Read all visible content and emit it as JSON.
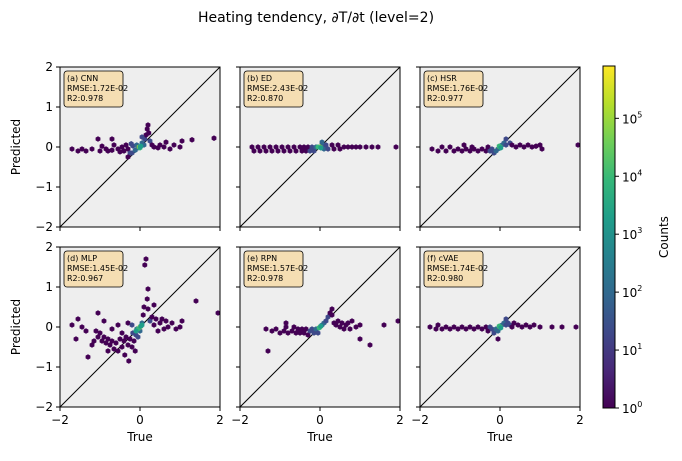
{
  "title": "Heating tendency, ∂T/∂t (level=2)",
  "colors": {
    "panel_bg": "#eeeeee",
    "box_fill": "#f5deb3",
    "diagonal": "#000000",
    "viridis": [
      "#440154",
      "#482878",
      "#3e4989",
      "#31688e",
      "#26828e",
      "#1f9e89",
      "#35b779",
      "#6ece58",
      "#b5de2b",
      "#fde725"
    ]
  },
  "colorbar": {
    "label": "Counts",
    "scale": "log",
    "range": [
      1,
      800000
    ],
    "ticks": [
      {
        "value": 1,
        "base": "10",
        "exp": "0"
      },
      {
        "value": 10,
        "base": "10",
        "exp": "1"
      },
      {
        "value": 100,
        "base": "10",
        "exp": "2"
      },
      {
        "value": 1000,
        "base": "10",
        "exp": "3"
      },
      {
        "value": 10000,
        "base": "10",
        "exp": "4"
      },
      {
        "value": 100000,
        "base": "10",
        "exp": "5"
      }
    ]
  },
  "chart_data": [
    {
      "type": "scatter",
      "subtype": "hexbin",
      "panel": "(a) CNN",
      "metrics": [
        "RMSE:1.72E-02",
        "R2:0.978"
      ],
      "xlabel": "",
      "ylabel": "Predicted",
      "xlim": [
        -2,
        2
      ],
      "ylim": [
        -2,
        2
      ],
      "xticks": [
        "−2",
        "0",
        "2"
      ],
      "yticks": [
        "−2",
        "−1",
        "0",
        "1",
        "2"
      ],
      "points": [
        [
          -1.7,
          -0.05
        ],
        [
          -1.55,
          -0.1
        ],
        [
          -1.45,
          -0.05
        ],
        [
          -1.35,
          -0.1
        ],
        [
          -1.2,
          -0.05
        ],
        [
          -1.0,
          -0.1
        ],
        [
          -0.95,
          0.02
        ],
        [
          -0.85,
          -0.05
        ],
        [
          -0.8,
          -0.1
        ],
        [
          -0.7,
          -0.08
        ],
        [
          -0.65,
          0.05
        ],
        [
          -0.55,
          -0.05
        ],
        [
          -0.5,
          -0.12
        ],
        [
          -0.45,
          0.0
        ],
        [
          -0.4,
          -0.1
        ],
        [
          -0.35,
          0.05
        ],
        [
          -0.3,
          -0.05
        ],
        [
          -0.25,
          -0.15
        ],
        [
          -0.22,
          0.08
        ],
        [
          -0.3,
          -0.25
        ],
        [
          -0.2,
          -0.15
        ],
        [
          -0.18,
          0.03
        ],
        [
          -0.12,
          -0.08
        ],
        [
          -0.08,
          0.05
        ],
        [
          -0.05,
          -0.02
        ],
        [
          0.0,
          0.0
        ],
        [
          0.05,
          0.1
        ],
        [
          0.1,
          0.05
        ],
        [
          0.12,
          0.2
        ],
        [
          0.15,
          0.3
        ],
        [
          0.18,
          0.45
        ],
        [
          0.2,
          0.55
        ],
        [
          0.22,
          0.35
        ],
        [
          0.25,
          0.15
        ],
        [
          0.3,
          0.05
        ],
        [
          0.35,
          0.0
        ],
        [
          0.45,
          -0.02
        ],
        [
          0.5,
          0.05
        ],
        [
          0.6,
          0.0
        ],
        [
          0.65,
          0.12
        ],
        [
          0.75,
          -0.05
        ],
        [
          0.85,
          0.05
        ],
        [
          1.0,
          0.0
        ],
        [
          1.05,
          0.15
        ],
        [
          1.3,
          0.18
        ],
        [
          1.85,
          0.22
        ],
        [
          -1.05,
          0.2
        ],
        [
          -0.7,
          0.2
        ],
        [
          0.05,
          0.25
        ]
      ],
      "dense": [
        [
          -0.02,
          0.0
        ],
        [
          0.0,
          -0.02
        ],
        [
          0.02,
          0.02
        ],
        [
          0.0,
          0.0
        ]
      ]
    },
    {
      "type": "scatter",
      "subtype": "hexbin",
      "panel": "(b) ED",
      "metrics": [
        "RMSE:2.43E-02",
        "R2:0.870"
      ],
      "xlabel": "",
      "ylabel": "",
      "xlim": [
        -2,
        2
      ],
      "ylim": [
        -2,
        2
      ],
      "xticks": [
        "−2",
        "0",
        "2"
      ],
      "yticks": [
        "−2",
        "−1",
        "0",
        "1",
        "2"
      ],
      "points": [
        [
          -1.7,
          0.0
        ],
        [
          -1.65,
          -0.1
        ],
        [
          -1.55,
          0.0
        ],
        [
          -1.5,
          -0.1
        ],
        [
          -1.4,
          0.0
        ],
        [
          -1.35,
          -0.1
        ],
        [
          -1.25,
          0.0
        ],
        [
          -1.2,
          -0.1
        ],
        [
          -1.1,
          0.0
        ],
        [
          -1.05,
          -0.1
        ],
        [
          -0.95,
          0.0
        ],
        [
          -0.9,
          -0.1
        ],
        [
          -0.8,
          0.0
        ],
        [
          -0.75,
          -0.1
        ],
        [
          -0.65,
          0.0
        ],
        [
          -0.6,
          -0.1
        ],
        [
          -0.5,
          0.0
        ],
        [
          -0.45,
          -0.1
        ],
        [
          -0.4,
          0.0
        ],
        [
          -0.35,
          -0.1
        ],
        [
          -0.3,
          0.0
        ],
        [
          -0.25,
          -0.1
        ],
        [
          -0.2,
          0.0
        ],
        [
          -0.15,
          -0.1
        ],
        [
          -0.1,
          0.0
        ],
        [
          0.05,
          0.05
        ],
        [
          0.1,
          -0.05
        ],
        [
          0.15,
          0.05
        ],
        [
          0.2,
          -0.05
        ],
        [
          0.3,
          0.05
        ],
        [
          0.35,
          -0.05
        ],
        [
          0.45,
          0.05
        ],
        [
          0.5,
          -0.05
        ],
        [
          0.6,
          0.0
        ],
        [
          0.7,
          0.0
        ],
        [
          0.8,
          0.0
        ],
        [
          0.9,
          0.0
        ],
        [
          1.0,
          0.0
        ],
        [
          1.15,
          0.0
        ],
        [
          1.3,
          0.0
        ],
        [
          1.45,
          0.0
        ],
        [
          1.9,
          0.0
        ],
        [
          0.05,
          0.12
        ]
      ],
      "dense": [
        [
          0.0,
          0.0
        ],
        [
          -0.05,
          0.0
        ],
        [
          0.02,
          -0.02
        ]
      ]
    },
    {
      "type": "scatter",
      "subtype": "hexbin",
      "panel": "(c) HSR",
      "metrics": [
        "RMSE:1.76E-02",
        "R2:0.977"
      ],
      "xlabel": "",
      "ylabel": "",
      "xlim": [
        -2,
        2
      ],
      "ylim": [
        -2,
        2
      ],
      "xticks": [
        "−2",
        "0",
        "2"
      ],
      "yticks": [
        "−2",
        "−1",
        "0",
        "1",
        "2"
      ],
      "points": [
        [
          -1.7,
          -0.05
        ],
        [
          -1.55,
          -0.1
        ],
        [
          -1.45,
          0.0
        ],
        [
          -1.35,
          -0.1
        ],
        [
          -1.25,
          0.0
        ],
        [
          -1.15,
          -0.1
        ],
        [
          -1.05,
          -0.05
        ],
        [
          -0.95,
          -0.1
        ],
        [
          -0.85,
          -0.05
        ],
        [
          -0.75,
          -0.1
        ],
        [
          -0.65,
          -0.05
        ],
        [
          -0.55,
          -0.1
        ],
        [
          -0.45,
          -0.05
        ],
        [
          -0.35,
          -0.1
        ],
        [
          -0.3,
          0.0
        ],
        [
          -0.25,
          -0.1
        ],
        [
          -0.2,
          -0.05
        ],
        [
          -0.15,
          -0.15
        ],
        [
          -0.1,
          -0.1
        ],
        [
          -0.05,
          -0.05
        ],
        [
          0.05,
          0.05
        ],
        [
          0.1,
          0.1
        ],
        [
          0.15,
          0.05
        ],
        [
          0.25,
          0.1
        ],
        [
          0.3,
          0.05
        ],
        [
          0.4,
          0.0
        ],
        [
          0.5,
          0.05
        ],
        [
          0.6,
          0.0
        ],
        [
          0.7,
          0.05
        ],
        [
          0.8,
          0.0
        ],
        [
          0.9,
          0.02
        ],
        [
          1.0,
          0.05
        ],
        [
          1.05,
          -0.05
        ],
        [
          1.95,
          0.05
        ],
        [
          0.15,
          0.2
        ],
        [
          -0.9,
          0.05
        ],
        [
          -0.7,
          0.0
        ]
      ],
      "dense": [
        [
          0.0,
          0.0
        ],
        [
          -0.02,
          0.02
        ],
        [
          0.02,
          -0.02
        ]
      ]
    },
    {
      "type": "scatter",
      "subtype": "hexbin",
      "panel": "(d) MLP",
      "metrics": [
        "RMSE:1.45E-02",
        "R2:0.967"
      ],
      "xlabel": "True",
      "ylabel": "Predicted",
      "xlim": [
        -2,
        2
      ],
      "ylim": [
        -2,
        2
      ],
      "xticks": [
        "−2",
        "0",
        "2"
      ],
      "yticks": [
        "−2",
        "−1",
        "0",
        "1",
        "2"
      ],
      "points": [
        [
          -1.7,
          0.05
        ],
        [
          -1.6,
          -0.3
        ],
        [
          -1.55,
          0.2
        ],
        [
          -1.45,
          0.0
        ],
        [
          -1.35,
          -0.1
        ],
        [
          -1.3,
          -0.75
        ],
        [
          -1.2,
          -0.45
        ],
        [
          -1.15,
          -0.35
        ],
        [
          -1.1,
          -0.1
        ],
        [
          -1.05,
          -0.25
        ],
        [
          -1.0,
          -0.15
        ],
        [
          -0.95,
          -0.35
        ],
        [
          -0.9,
          -0.25
        ],
        [
          -0.85,
          -0.4
        ],
        [
          -0.8,
          -0.3
        ],
        [
          -0.75,
          -0.45
        ],
        [
          -0.7,
          -0.35
        ],
        [
          -0.65,
          -0.55
        ],
        [
          -0.6,
          -0.4
        ],
        [
          -0.55,
          -0.6
        ],
        [
          -0.5,
          -0.3
        ],
        [
          -0.45,
          -0.5
        ],
        [
          -0.4,
          -0.35
        ],
        [
          -0.38,
          -0.7
        ],
        [
          -0.35,
          -0.25
        ],
        [
          -0.3,
          -0.45
        ],
        [
          -0.28,
          -0.85
        ],
        [
          -0.25,
          -0.3
        ],
        [
          -0.2,
          -0.5
        ],
        [
          -0.18,
          -0.15
        ],
        [
          -0.15,
          -0.35
        ],
        [
          -0.12,
          -0.6
        ],
        [
          -0.1,
          -0.2
        ],
        [
          -0.08,
          -0.05
        ],
        [
          -0.05,
          -0.25
        ],
        [
          0.0,
          -0.1
        ],
        [
          0.05,
          0.1
        ],
        [
          0.08,
          0.3
        ],
        [
          0.1,
          0.5
        ],
        [
          0.12,
          1.55
        ],
        [
          0.15,
          1.7
        ],
        [
          0.18,
          0.7
        ],
        [
          0.2,
          0.45
        ],
        [
          0.25,
          0.15
        ],
        [
          0.3,
          0.25
        ],
        [
          0.35,
          0.05
        ],
        [
          0.4,
          0.2
        ],
        [
          0.45,
          -0.1
        ],
        [
          0.5,
          0.1
        ],
        [
          0.55,
          0.2
        ],
        [
          0.6,
          -0.05
        ],
        [
          0.65,
          0.15
        ],
        [
          0.7,
          0.0
        ],
        [
          0.8,
          0.1
        ],
        [
          0.9,
          -0.05
        ],
        [
          1.0,
          0.0
        ],
        [
          1.05,
          0.15
        ],
        [
          1.4,
          0.65
        ],
        [
          1.95,
          0.35
        ],
        [
          -0.9,
          0.15
        ],
        [
          -0.55,
          0.05
        ],
        [
          -1.05,
          0.35
        ],
        [
          -0.3,
          0.1
        ],
        [
          0.2,
          0.95
        ],
        [
          0.35,
          0.55
        ],
        [
          -0.7,
          -0.05
        ],
        [
          -0.2,
          0.05
        ],
        [
          -0.45,
          -0.15
        ],
        [
          -0.8,
          -0.6
        ]
      ],
      "dense": [
        [
          0.0,
          0.0
        ],
        [
          -0.05,
          -0.05
        ],
        [
          0.02,
          0.02
        ],
        [
          -0.1,
          -0.1
        ],
        [
          0.05,
          0.05
        ]
      ]
    },
    {
      "type": "scatter",
      "subtype": "hexbin",
      "panel": "(e) RPN",
      "metrics": [
        "RMSE:1.57E-02",
        "R2:0.978"
      ],
      "xlabel": "True",
      "ylabel": "",
      "xlim": [
        -2,
        2
      ],
      "ylim": [
        -2,
        2
      ],
      "xticks": [
        "−2",
        "0",
        "2"
      ],
      "yticks": [
        "−2",
        "−1",
        "0",
        "1",
        "2"
      ],
      "points": [
        [
          -1.35,
          -0.05
        ],
        [
          -1.3,
          -0.6
        ],
        [
          -1.2,
          -0.1
        ],
        [
          -1.1,
          -0.05
        ],
        [
          -1.0,
          -0.15
        ],
        [
          -0.9,
          -0.1
        ],
        [
          -0.85,
          0.0
        ],
        [
          -0.8,
          -0.15
        ],
        [
          -0.7,
          -0.1
        ],
        [
          -0.65,
          0.0
        ],
        [
          -0.6,
          -0.15
        ],
        [
          -0.55,
          -0.05
        ],
        [
          -0.5,
          -0.15
        ],
        [
          -0.45,
          -0.05
        ],
        [
          -0.4,
          -0.15
        ],
        [
          -0.35,
          -0.05
        ],
        [
          -0.3,
          -0.2
        ],
        [
          -0.25,
          -0.1
        ],
        [
          -0.2,
          -0.05
        ],
        [
          -0.15,
          -0.15
        ],
        [
          -0.1,
          -0.05
        ],
        [
          -0.05,
          -0.15
        ],
        [
          0.05,
          0.05
        ],
        [
          0.1,
          0.1
        ],
        [
          0.15,
          0.15
        ],
        [
          0.2,
          0.25
        ],
        [
          0.25,
          0.35
        ],
        [
          0.3,
          0.3
        ],
        [
          0.35,
          0.1
        ],
        [
          0.4,
          0.05
        ],
        [
          0.45,
          0.15
        ],
        [
          0.5,
          0.0
        ],
        [
          0.55,
          0.1
        ],
        [
          0.6,
          -0.05
        ],
        [
          0.65,
          0.05
        ],
        [
          0.7,
          0.1
        ],
        [
          0.75,
          -0.05
        ],
        [
          0.8,
          0.15
        ],
        [
          0.9,
          0.0
        ],
        [
          1.0,
          0.05
        ],
        [
          1.0,
          -0.3
        ],
        [
          1.25,
          -0.45
        ],
        [
          1.6,
          0.05
        ],
        [
          1.95,
          0.15
        ],
        [
          -0.85,
          0.1
        ],
        [
          0.3,
          0.45
        ]
      ],
      "dense": [
        [
          0.0,
          0.0
        ],
        [
          -0.02,
          -0.02
        ],
        [
          0.02,
          0.02
        ]
      ]
    },
    {
      "type": "scatter",
      "subtype": "hexbin",
      "panel": "(f) cVAE",
      "metrics": [
        "RMSE:1.74E-02",
        "R2:0.980"
      ],
      "xlabel": "True",
      "ylabel": "",
      "xlim": [
        -2,
        2
      ],
      "ylim": [
        -2,
        2
      ],
      "xticks": [
        "−2",
        "0",
        "2"
      ],
      "yticks": [
        "−2",
        "−1",
        "0",
        "1",
        "2"
      ],
      "points": [
        [
          -1.75,
          0.0
        ],
        [
          -1.6,
          -0.05
        ],
        [
          -1.55,
          0.05
        ],
        [
          -1.45,
          -0.05
        ],
        [
          -1.35,
          0.0
        ],
        [
          -1.25,
          -0.05
        ],
        [
          -1.15,
          0.0
        ],
        [
          -1.05,
          -0.05
        ],
        [
          -0.95,
          0.0
        ],
        [
          -0.85,
          -0.05
        ],
        [
          -0.75,
          0.0
        ],
        [
          -0.65,
          -0.05
        ],
        [
          -0.55,
          0.0
        ],
        [
          -0.45,
          -0.05
        ],
        [
          -0.35,
          0.0
        ],
        [
          -0.3,
          -0.1
        ],
        [
          -0.25,
          0.0
        ],
        [
          -0.2,
          -0.05
        ],
        [
          -0.15,
          -0.15
        ],
        [
          -0.1,
          -0.05
        ],
        [
          -0.05,
          -0.1
        ],
        [
          0.05,
          0.05
        ],
        [
          0.1,
          0.1
        ],
        [
          0.15,
          0.05
        ],
        [
          0.2,
          0.1
        ],
        [
          0.25,
          0.05
        ],
        [
          0.3,
          0.0
        ],
        [
          0.35,
          0.1
        ],
        [
          0.45,
          0.05
        ],
        [
          0.55,
          0.0
        ],
        [
          0.65,
          0.05
        ],
        [
          0.75,
          0.0
        ],
        [
          0.85,
          0.05
        ],
        [
          1.0,
          0.0
        ],
        [
          1.3,
          0.0
        ],
        [
          1.55,
          0.0
        ],
        [
          1.9,
          0.0
        ],
        [
          -0.05,
          -0.3
        ],
        [
          0.15,
          0.2
        ]
      ],
      "dense": [
        [
          0.0,
          0.0
        ],
        [
          -0.02,
          0.02
        ],
        [
          0.02,
          -0.02
        ]
      ]
    }
  ]
}
